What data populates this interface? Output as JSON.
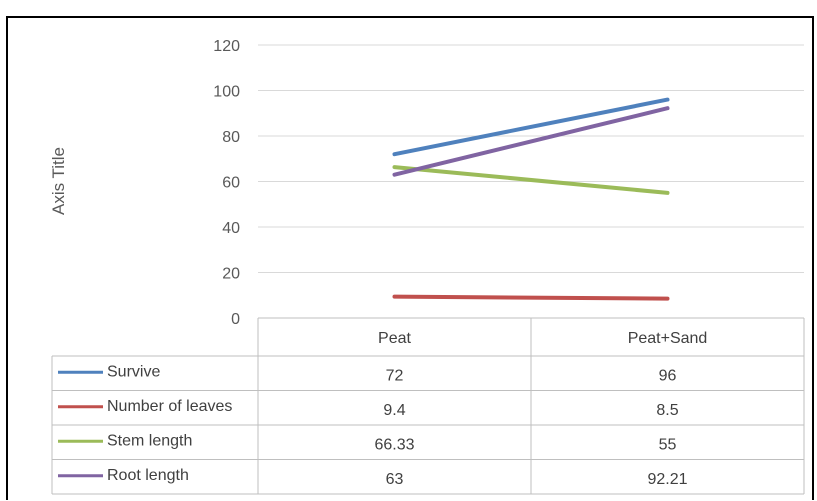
{
  "chart_data": {
    "type": "line",
    "categories": [
      "Peat",
      "Peat+Sand"
    ],
    "ylabel": "Axis Title",
    "ylim": [
      0,
      120
    ],
    "yticks": [
      0,
      20,
      40,
      60,
      80,
      100,
      120
    ],
    "grid": true,
    "legend": "data-table",
    "series": [
      {
        "name": "Survive",
        "color": "#4f81bd",
        "values": [
          72,
          96
        ],
        "labels": [
          "72",
          "96"
        ]
      },
      {
        "name": "Number of leaves",
        "color": "#c0504d",
        "values": [
          9.4,
          8.5
        ],
        "labels": [
          "9.4",
          "8.5"
        ]
      },
      {
        "name": "Stem length",
        "color": "#9bbb59",
        "values": [
          66.33,
          55
        ],
        "labels": [
          "66.33",
          "55"
        ]
      },
      {
        "name": "Root length",
        "color": "#8064a2",
        "values": [
          63,
          92.21
        ],
        "labels": [
          "63",
          "92.21"
        ]
      }
    ]
  }
}
